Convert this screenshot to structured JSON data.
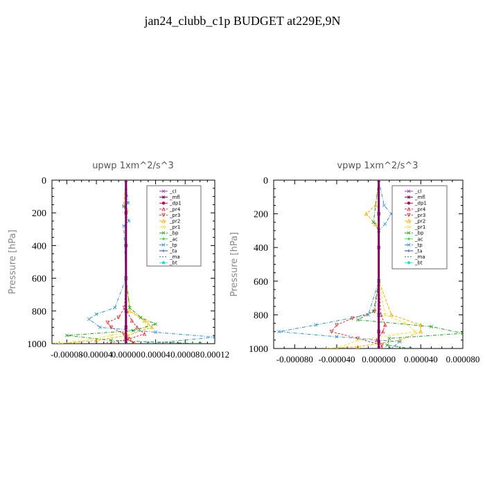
{
  "title": "jan24_clubb_c1p  BUDGET at229E,9N",
  "legend_entries": [
    "_cl",
    "_mfl",
    "_dp1",
    "_pr4",
    "_pr3",
    "_pr2",
    "_pr1",
    "_bp",
    "_ac",
    "_tp",
    "_ta",
    "_ma",
    "_bt"
  ],
  "legend_colors": [
    "#a040c0",
    "#800060",
    "#c00060",
    "#e03040",
    "#e03030",
    "#f0b000",
    "#f0e040",
    "#20a020",
    "#40e040",
    "#3090d0",
    "#2040c0",
    "#3070a0",
    "#30d8d8"
  ],
  "chart_data": [
    {
      "type": "line",
      "title": "upwp   1xm^2/s^3",
      "ylabel": "Pressure [hPa]",
      "xlabel": "",
      "xlim": [
        -0.0001,
        0.00012
      ],
      "ylim": [
        1000,
        0
      ],
      "xticks": [
        -8e-05,
        -4e-05,
        0.0,
        4e-05,
        8e-05,
        0.00012
      ],
      "xtick_labels": [
        "-0.00008",
        "-0.00004",
        "0.00000",
        "0.00004",
        "0.00008",
        "0.00012"
      ],
      "yticks": [
        0,
        200,
        400,
        600,
        800,
        1000
      ],
      "ytick_labels": [
        "0",
        "200",
        "400",
        "600",
        "800",
        "1000"
      ],
      "legend_position": "top-right",
      "series": [
        {
          "name": "_cl",
          "y": [
            0,
            200,
            400,
            600,
            800,
            900,
            960,
            1000
          ],
          "x": [
            0,
            0,
            0,
            0,
            0,
            0,
            0,
            0
          ]
        },
        {
          "name": "_mfl",
          "y": [
            0,
            200,
            400,
            600,
            800,
            900,
            960,
            1000
          ],
          "x": [
            0,
            0,
            0,
            0,
            0,
            0,
            0,
            0
          ]
        },
        {
          "name": "_dp1",
          "y": [
            0,
            200,
            400,
            600,
            800,
            900,
            960,
            1000
          ],
          "x": [
            0,
            0,
            0,
            0,
            0,
            0,
            0,
            0
          ]
        },
        {
          "name": "_pr4",
          "y": [
            0,
            600,
            800,
            860,
            900,
            940,
            970,
            1000
          ],
          "x": [
            0,
            0,
            1e-06,
            8e-06,
            1.5e-05,
            2.5e-05,
            5e-06,
            -2.5e-05
          ]
        },
        {
          "name": "_pr3",
          "y": [
            0,
            600,
            780,
            840,
            870,
            900,
            940,
            970,
            1000
          ],
          "x": [
            0,
            0,
            -2e-06,
            -1e-05,
            -2.5e-05,
            -2e-05,
            -3e-06,
            2e-06,
            1e-05
          ]
        },
        {
          "name": "_pr2",
          "y": [
            0,
            150,
            180,
            600,
            800,
            860,
            900,
            950,
            980,
            1000
          ],
          "x": [
            0,
            -3e-06,
            1e-06,
            0,
            5e-06,
            2.5e-05,
            3.5e-05,
            2e-06,
            -4e-05,
            -9e-05
          ]
        },
        {
          "name": "_pr1",
          "y": [
            0,
            600,
            800,
            870,
            900,
            950,
            990,
            1000
          ],
          "x": [
            0,
            0,
            6e-06,
            3e-05,
            2.8e-05,
            -2e-05,
            -7e-05,
            -9.5e-05
          ]
        },
        {
          "name": "_bp",
          "y": [
            0,
            600,
            780,
            840,
            880,
            920,
            950,
            980,
            1000
          ],
          "x": [
            0,
            0,
            5e-06,
            2e-05,
            4e-05,
            1e-05,
            -8e-05,
            -2e-05,
            0.0001
          ]
        },
        {
          "name": "_ac",
          "y": [
            0,
            600,
            800,
            900,
            1000
          ],
          "x": [
            0,
            0,
            0,
            0,
            0
          ]
        },
        {
          "name": "_tp",
          "y": [
            0,
            140,
            160,
            250,
            280,
            600,
            780,
            820,
            850,
            900,
            930,
            960,
            1000
          ],
          "x": [
            0,
            3e-06,
            -3e-06,
            4e-06,
            -3e-06,
            0,
            -1.5e-05,
            -4e-05,
            -5e-05,
            -3.5e-05,
            4e-05,
            0.00012,
            3e-05
          ]
        },
        {
          "name": "_ta",
          "y": [
            0,
            600,
            800,
            1000
          ],
          "x": [
            0,
            0,
            0,
            0
          ]
        },
        {
          "name": "_ma",
          "y": [
            0,
            600,
            800,
            1000
          ],
          "x": [
            0,
            0,
            0,
            0
          ]
        },
        {
          "name": "_bt",
          "y": [
            0,
            600,
            800,
            1000
          ],
          "x": [
            0,
            0,
            0,
            0
          ]
        }
      ]
    },
    {
      "type": "line",
      "title": "vpwp   1xm^2/s^3",
      "ylabel": "Pressure [hPa]",
      "xlabel": "",
      "xlim": [
        -0.0001,
        8e-05
      ],
      "ylim": [
        1000,
        0
      ],
      "xticks": [
        -8e-05,
        -4e-05,
        0.0,
        4e-05,
        8e-05
      ],
      "xtick_labels": [
        "-0.000080",
        "-0.000040",
        "0.000000",
        "0.000040",
        "0.000080"
      ],
      "yticks": [
        0,
        200,
        400,
        600,
        800,
        1000
      ],
      "ytick_labels": [
        "0",
        "200",
        "400",
        "600",
        "800",
        "1000"
      ],
      "legend_position": "top-right",
      "series": [
        {
          "name": "_cl",
          "y": [
            0,
            200,
            400,
            600,
            800,
            900,
            960,
            1000
          ],
          "x": [
            0,
            0,
            0,
            0,
            0,
            0,
            0,
            0
          ]
        },
        {
          "name": "_mfl",
          "y": [
            0,
            200,
            400,
            600,
            800,
            900,
            960,
            1000
          ],
          "x": [
            0,
            0,
            0,
            0,
            0,
            0,
            0,
            0
          ]
        },
        {
          "name": "_dp1",
          "y": [
            0,
            200,
            400,
            600,
            800,
            900,
            960,
            1000
          ],
          "x": [
            0,
            0,
            0,
            0,
            0,
            0,
            0,
            0
          ]
        },
        {
          "name": "_pr4",
          "y": [
            0,
            600,
            800,
            860,
            900,
            950,
            1000
          ],
          "x": [
            0,
            0,
            2e-06,
            6e-06,
            4e-06,
            -2e-06,
            0
          ]
        },
        {
          "name": "_pr3",
          "y": [
            0,
            600,
            780,
            820,
            860,
            900,
            940,
            980,
            1000
          ],
          "x": [
            0,
            0,
            -4e-06,
            -2.5e-05,
            -4e-05,
            -4.5e-05,
            -2e-05,
            3e-06,
            2e-06
          ]
        },
        {
          "name": "_pr2",
          "y": [
            0,
            150,
            200,
            260,
            300,
            600,
            800,
            860,
            900,
            950,
            990,
            1000
          ],
          "x": [
            0,
            -3e-06,
            -1.2e-05,
            -3e-06,
            0,
            0,
            1.2e-05,
            4e-05,
            4e-05,
            2e-05,
            -2e-05,
            -5e-05
          ]
        },
        {
          "name": "_pr1",
          "y": [
            0,
            600,
            800,
            850,
            900,
            950,
            1000
          ],
          "x": [
            0,
            0,
            6e-06,
            2.5e-05,
            3.5e-05,
            -2e-05,
            -4e-05
          ]
        },
        {
          "name": "_bp",
          "y": [
            0,
            250,
            300,
            600,
            780,
            830,
            870,
            910,
            940,
            980,
            1000
          ],
          "x": [
            0,
            -5e-06,
            0,
            0,
            -5e-06,
            -2e-05,
            5e-05,
            8e-05,
            1e-05,
            8e-06,
            3e-05
          ]
        },
        {
          "name": "_ac",
          "y": [
            0,
            600,
            800,
            1000
          ],
          "x": [
            0,
            0,
            0,
            0
          ]
        },
        {
          "name": "_tp",
          "y": [
            0,
            150,
            200,
            260,
            300,
            600,
            800,
            860,
            900,
            930,
            960,
            1000
          ],
          "x": [
            0,
            5e-06,
            1.2e-05,
            6e-06,
            0,
            0,
            -1e-05,
            -6e-05,
            -9.5e-05,
            -4e-05,
            2e-05,
            1.2e-05
          ]
        },
        {
          "name": "_ta",
          "y": [
            0,
            600,
            800,
            1000
          ],
          "x": [
            0,
            0,
            0,
            0
          ]
        },
        {
          "name": "_ma",
          "y": [
            0,
            600,
            800,
            1000
          ],
          "x": [
            0,
            0,
            0,
            0
          ]
        },
        {
          "name": "_bt",
          "y": [
            0,
            600,
            800,
            1000
          ],
          "x": [
            0,
            0,
            0,
            0
          ]
        }
      ]
    }
  ]
}
